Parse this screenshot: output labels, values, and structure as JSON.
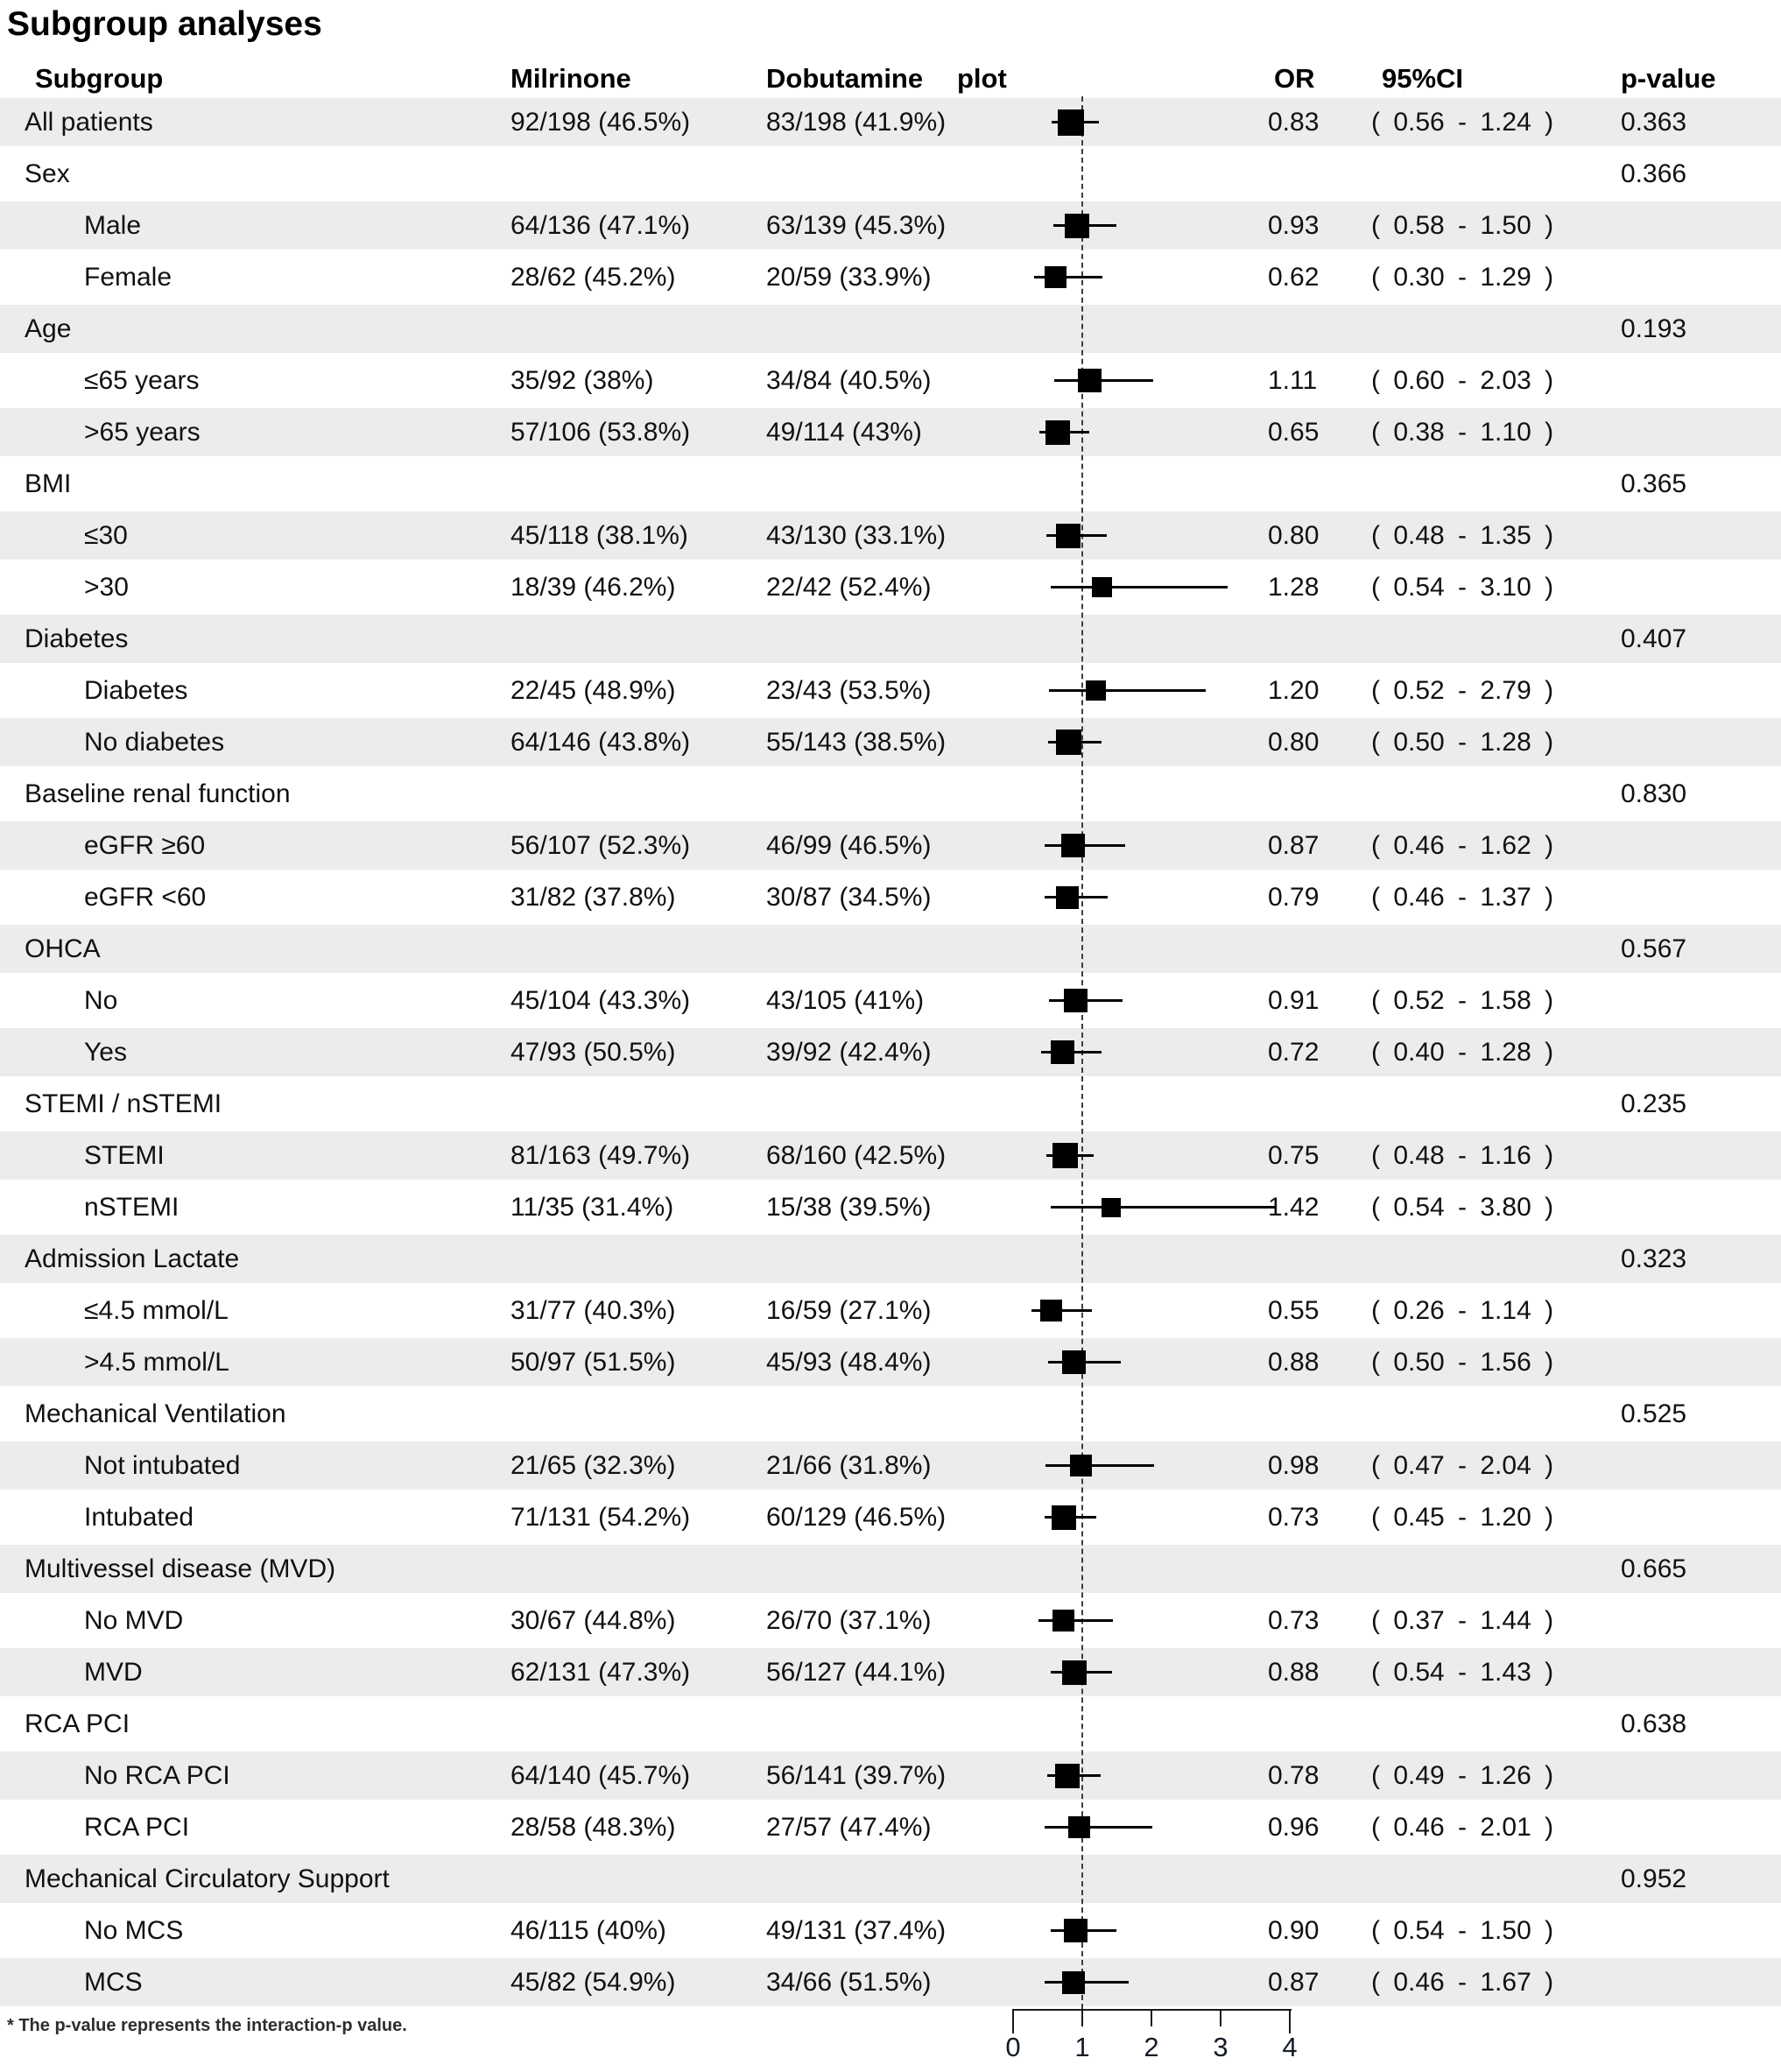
{
  "title": "Subgroup analyses",
  "columns": {
    "subgroup": "Subgroup",
    "milrinone": "Milrinone",
    "dobutamine": "Dobutamine",
    "plot": "plot",
    "or": "OR",
    "ci": "95%CI",
    "p": "p-value"
  },
  "footnote": "* The p-value represents the interaction-p value.",
  "colors": {
    "stripe": "#ebedec",
    "marker": "#000000",
    "reference_line": "#3c3c3c",
    "axis": "#1a1a1a",
    "text": "#111111"
  },
  "chart_data": {
    "type": "scatter",
    "subtype": "forest-plot",
    "title": "Subgroup analyses",
    "xlim": [
      0,
      4
    ],
    "xticks": [
      0,
      1,
      2,
      3,
      4
    ],
    "reference_line": 1,
    "legend": "none",
    "grid": false,
    "rows": [
      {
        "label": "All patients",
        "indent": false,
        "milrinone": "92/198 (46.5%)",
        "dobutamine": "83/198 (41.9%)",
        "or": 0.83,
        "ci_low": 0.56,
        "ci_high": 1.24,
        "or_text": "0.83",
        "ci_text": "( 0.56 - 1.24 )",
        "p": "0.363",
        "weight": 30
      },
      {
        "label": "Sex",
        "indent": false,
        "p": "0.366"
      },
      {
        "label": "Male",
        "indent": true,
        "milrinone": "64/136 (47.1%)",
        "dobutamine": "63/139 (45.3%)",
        "or": 0.93,
        "ci_low": 0.58,
        "ci_high": 1.5,
        "or_text": "0.93",
        "ci_text": "( 0.58 - 1.50 )",
        "weight": 28
      },
      {
        "label": "Female",
        "indent": true,
        "milrinone": "28/62 (45.2%)",
        "dobutamine": "20/59 (33.9%)",
        "or": 0.62,
        "ci_low": 0.3,
        "ci_high": 1.29,
        "or_text": "0.62",
        "ci_text": "( 0.30 - 1.29 )",
        "weight": 25
      },
      {
        "label": "Age",
        "indent": false,
        "p": "0.193"
      },
      {
        "label": "≤65 years",
        "indent": true,
        "milrinone": "35/92 (38%)",
        "dobutamine": "34/84 (40.5%)",
        "or": 1.11,
        "ci_low": 0.6,
        "ci_high": 2.03,
        "or_text": "1.11",
        "ci_text": "( 0.60 - 2.03 )",
        "weight": 27
      },
      {
        "label": ">65 years",
        "indent": true,
        "milrinone": "57/106 (53.8%)",
        "dobutamine": "49/114 (43%)",
        "or": 0.65,
        "ci_low": 0.38,
        "ci_high": 1.1,
        "or_text": "0.65",
        "ci_text": "( 0.38 - 1.10 )",
        "weight": 28
      },
      {
        "label": "BMI",
        "indent": false,
        "p": "0.365"
      },
      {
        "label": "≤30",
        "indent": true,
        "milrinone": "45/118 (38.1%)",
        "dobutamine": "43/130 (33.1%)",
        "or": 0.8,
        "ci_low": 0.48,
        "ci_high": 1.35,
        "or_text": "0.80",
        "ci_text": "( 0.48 - 1.35 )",
        "weight": 28
      },
      {
        "label": ">30",
        "indent": true,
        "milrinone": "18/39 (46.2%)",
        "dobutamine": "22/42 (52.4%)",
        "or": 1.28,
        "ci_low": 0.54,
        "ci_high": 3.1,
        "or_text": "1.28",
        "ci_text": "( 0.54 - 3.10 )",
        "weight": 23
      },
      {
        "label": "Diabetes",
        "indent": false,
        "p": "0.407"
      },
      {
        "label": "Diabetes",
        "indent": true,
        "milrinone": "22/45 (48.9%)",
        "dobutamine": "23/43 (53.5%)",
        "or": 1.2,
        "ci_low": 0.52,
        "ci_high": 2.79,
        "or_text": "1.20",
        "ci_text": "( 0.52 - 2.79 )",
        "weight": 23
      },
      {
        "label": "No diabetes",
        "indent": true,
        "milrinone": "64/146 (43.8%)",
        "dobutamine": "55/143 (38.5%)",
        "or": 0.8,
        "ci_low": 0.5,
        "ci_high": 1.28,
        "or_text": "0.80",
        "ci_text": "( 0.50 - 1.28 )",
        "weight": 29
      },
      {
        "label": "Baseline renal function",
        "indent": false,
        "p": "0.830"
      },
      {
        "label": "eGFR ≥60",
        "indent": true,
        "milrinone": "56/107 (52.3%)",
        "dobutamine": "46/99 (46.5%)",
        "or": 0.87,
        "ci_low": 0.46,
        "ci_high": 1.62,
        "or_text": "0.87",
        "ci_text": "( 0.46 - 1.62 )",
        "weight": 27
      },
      {
        "label": "eGFR <60",
        "indent": true,
        "milrinone": "31/82 (37.8%)",
        "dobutamine": "30/87 (34.5%)",
        "or": 0.79,
        "ci_low": 0.46,
        "ci_high": 1.37,
        "or_text": "0.79",
        "ci_text": "( 0.46 - 1.37 )",
        "weight": 26
      },
      {
        "label": "OHCA",
        "indent": false,
        "p": "0.567"
      },
      {
        "label": "No",
        "indent": true,
        "milrinone": "45/104 (43.3%)",
        "dobutamine": "43/105 (41%)",
        "or": 0.91,
        "ci_low": 0.52,
        "ci_high": 1.58,
        "or_text": "0.91",
        "ci_text": "( 0.52 - 1.58 )",
        "weight": 27
      },
      {
        "label": "Yes",
        "indent": true,
        "milrinone": "47/93 (50.5%)",
        "dobutamine": "39/92 (42.4%)",
        "or": 0.72,
        "ci_low": 0.4,
        "ci_high": 1.28,
        "or_text": "0.72",
        "ci_text": "( 0.40 - 1.28 )",
        "weight": 27
      },
      {
        "label": "STEMI / nSTEMI",
        "indent": false,
        "p": "0.235"
      },
      {
        "label": "STEMI",
        "indent": true,
        "milrinone": "81/163 (49.7%)",
        "dobutamine": "68/160 (42.5%)",
        "or": 0.75,
        "ci_low": 0.48,
        "ci_high": 1.16,
        "or_text": "0.75",
        "ci_text": "( 0.48 - 1.16 )",
        "weight": 29
      },
      {
        "label": "nSTEMI",
        "indent": true,
        "milrinone": "11/35 (31.4%)",
        "dobutamine": "15/38 (39.5%)",
        "or": 1.42,
        "ci_low": 0.54,
        "ci_high": 3.8,
        "or_text": "1.42",
        "ci_text": "( 0.54 - 3.80 )",
        "weight": 22
      },
      {
        "label": "Admission Lactate",
        "indent": false,
        "p": "0.323"
      },
      {
        "label": "≤4.5 mmol/L",
        "indent": true,
        "milrinone": "31/77 (40.3%)",
        "dobutamine": "16/59 (27.1%)",
        "or": 0.55,
        "ci_low": 0.26,
        "ci_high": 1.14,
        "or_text": "0.55",
        "ci_text": "( 0.26 - 1.14 )",
        "weight": 25
      },
      {
        "label": ">4.5 mmol/L",
        "indent": true,
        "milrinone": "50/97 (51.5%)",
        "dobutamine": "45/93 (48.4%)",
        "or": 0.88,
        "ci_low": 0.5,
        "ci_high": 1.56,
        "or_text": "0.88",
        "ci_text": "( 0.50 - 1.56 )",
        "weight": 27
      },
      {
        "label": "Mechanical Ventilation",
        "indent": false,
        "p": "0.525"
      },
      {
        "label": "Not intubated",
        "indent": true,
        "milrinone": "21/65 (32.3%)",
        "dobutamine": "21/66 (31.8%)",
        "or": 0.98,
        "ci_low": 0.47,
        "ci_high": 2.04,
        "or_text": "0.98",
        "ci_text": "( 0.47 - 2.04 )",
        "weight": 25
      },
      {
        "label": "Intubated",
        "indent": true,
        "milrinone": "71/131 (54.2%)",
        "dobutamine": "60/129 (46.5%)",
        "or": 0.73,
        "ci_low": 0.45,
        "ci_high": 1.2,
        "or_text": "0.73",
        "ci_text": "( 0.45 - 1.20 )",
        "weight": 28
      },
      {
        "label": "Multivessel disease (MVD)",
        "indent": false,
        "p": "0.665"
      },
      {
        "label": "No MVD",
        "indent": true,
        "milrinone": "30/67 (44.8%)",
        "dobutamine": "26/70 (37.1%)",
        "or": 0.73,
        "ci_low": 0.37,
        "ci_high": 1.44,
        "or_text": "0.73",
        "ci_text": "( 0.37 - 1.44 )",
        "weight": 25
      },
      {
        "label": "MVD",
        "indent": true,
        "milrinone": "62/131 (47.3%)",
        "dobutamine": "56/127 (44.1%)",
        "or": 0.88,
        "ci_low": 0.54,
        "ci_high": 1.43,
        "or_text": "0.88",
        "ci_text": "( 0.54 - 1.43 )",
        "weight": 28
      },
      {
        "label": "RCA PCI",
        "indent": false,
        "p": "0.638"
      },
      {
        "label": "No RCA PCI",
        "indent": true,
        "milrinone": "64/140 (45.7%)",
        "dobutamine": "56/141 (39.7%)",
        "or": 0.78,
        "ci_low": 0.49,
        "ci_high": 1.26,
        "or_text": "0.78",
        "ci_text": "( 0.49 - 1.26 )",
        "weight": 28
      },
      {
        "label": "RCA PCI",
        "indent": true,
        "milrinone": "28/58 (48.3%)",
        "dobutamine": "27/57 (47.4%)",
        "or": 0.96,
        "ci_low": 0.46,
        "ci_high": 2.01,
        "or_text": "0.96",
        "ci_text": "( 0.46 - 2.01 )",
        "weight": 25
      },
      {
        "label": "Mechanical Circulatory Support",
        "indent": false,
        "p": "0.952"
      },
      {
        "label": "No MCS",
        "indent": true,
        "milrinone": "46/115 (40%)",
        "dobutamine": "49/131 (37.4%)",
        "or": 0.9,
        "ci_low": 0.54,
        "ci_high": 1.5,
        "or_text": "0.90",
        "ci_text": "( 0.54 - 1.50 )",
        "weight": 27
      },
      {
        "label": "MCS",
        "indent": true,
        "milrinone": "45/82 (54.9%)",
        "dobutamine": "34/66 (51.5%)",
        "or": 0.87,
        "ci_low": 0.46,
        "ci_high": 1.67,
        "or_text": "0.87",
        "ci_text": "( 0.46 - 1.67 )",
        "weight": 26
      }
    ]
  }
}
